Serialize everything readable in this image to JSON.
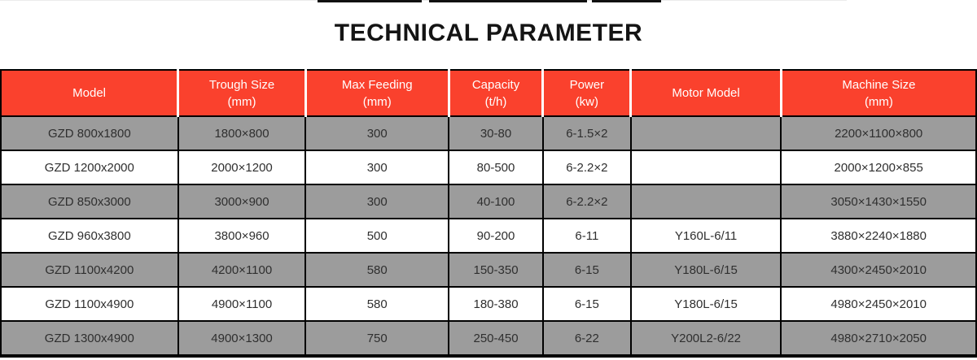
{
  "title": "TECHNICAL PARAMETER",
  "colors": {
    "header_bg": "#fa412d",
    "header_text": "#ffffff",
    "row_bg": "#ffffff",
    "row_alt_bg": "#9c9c9c",
    "border": "#000000",
    "cell_text": "#2f2f2f"
  },
  "table": {
    "columns": [
      {
        "label": "Model",
        "sub": ""
      },
      {
        "label": "Trough Size",
        "sub": "(mm)"
      },
      {
        "label": "Max Feeding",
        "sub": "(mm)"
      },
      {
        "label": "Capacity",
        "sub": "(t/h)"
      },
      {
        "label": "Power",
        "sub": "(kw)"
      },
      {
        "label": "Motor Model",
        "sub": ""
      },
      {
        "label": "Machine Size",
        "sub": "(mm)"
      }
    ],
    "column_widths_percent": [
      18.17,
      13.08,
      14.67,
      9.67,
      9.0,
      15.41,
      20.0
    ],
    "rows": [
      [
        "GZD 800x1800",
        "1800×800",
        "300",
        "30-80",
        "6-1.5×2",
        "",
        "2200×1100×800"
      ],
      [
        "GZD 1200x2000",
        "2000×1200",
        "300",
        "80-500",
        "6-2.2×2",
        "",
        "2000×1200×855"
      ],
      [
        "GZD 850x3000",
        "3000×900",
        "300",
        "40-100",
        "6-2.2×2",
        "",
        "3050×1430×1550"
      ],
      [
        "GZD 960x3800",
        "3800×960",
        "500",
        "90-200",
        "6-11",
        "Y160L-6/11",
        "3880×2240×1880"
      ],
      [
        "GZD 1100x4200",
        "4200×1100",
        "580",
        "150-350",
        "6-15",
        "Y180L-6/15",
        "4300×2450×2010"
      ],
      [
        "GZD 1100x4900",
        "4900×1100",
        "580",
        "180-380",
        "6-15",
        "Y180L-6/15",
        "4980×2450×2010"
      ],
      [
        "GZD 1300x4900",
        "4900×1300",
        "750",
        "250-450",
        "6-22",
        "Y200L2-6/22",
        "4980×2710×2050"
      ]
    ]
  }
}
